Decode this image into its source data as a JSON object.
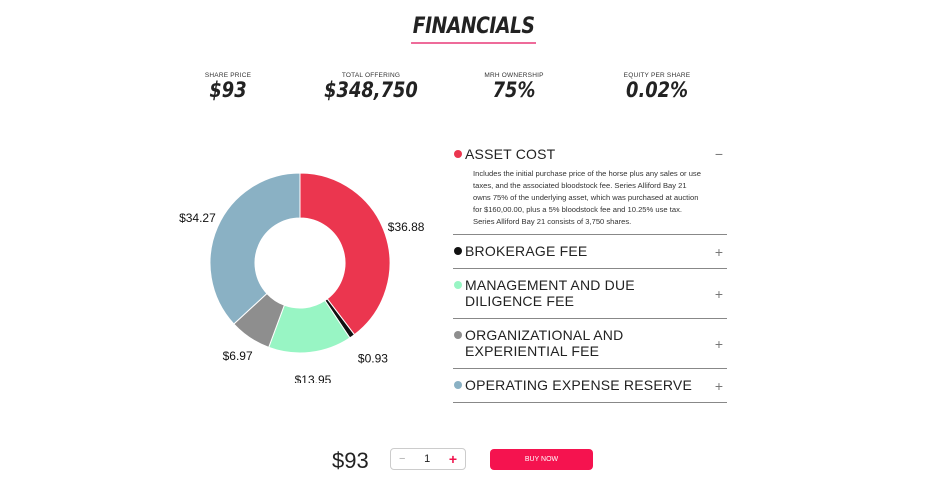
{
  "title": "FINANCIALS",
  "stats": [
    {
      "label": "SHARE PRICE",
      "value": "$93"
    },
    {
      "label": "TOTAL OFFERING",
      "value": "$348,750"
    },
    {
      "label": "MRH OWNERSHIP",
      "value": "75%"
    },
    {
      "label": "EQUITY PER SHARE",
      "value": "0.02%"
    }
  ],
  "chart_data": {
    "type": "pie",
    "categories": [
      "Asset Cost",
      "Brokerage Fee",
      "Management and Due Diligence Fee",
      "Organizational and Experiential Fee",
      "Operating Expense Reserve"
    ],
    "values": [
      36.88,
      0.93,
      13.95,
      6.97,
      34.27
    ],
    "labels": [
      "$36.88",
      "$0.93",
      "$13.95",
      "$6.97",
      "$34.27"
    ],
    "colors": [
      "#eb364f",
      "#111111",
      "#98f5c4",
      "#8e8e8e",
      "#8ab1c4"
    ]
  },
  "fees": [
    {
      "label": "ASSET COST",
      "toggle": "−",
      "color": "#eb364f",
      "description": "Includes the initial purchase price of the horse plus any sales or use taxes, and the associated bloodstock fee. Series Alliford Bay 21 owns 75% of the underlying asset, which was purchased at auction for $160,00.00, plus a 5% bloodstock fee and 10.25% use tax. Series Alliford Bay 21 consists of 3,750 shares."
    },
    {
      "label": "BROKERAGE FEE",
      "toggle": "+",
      "color": "#111111"
    },
    {
      "label": "MANAGEMENT AND DUE DILIGENCE FEE",
      "toggle": "+",
      "color": "#98f5c4"
    },
    {
      "label": "ORGANIZATIONAL AND EXPERIENTIAL FEE",
      "toggle": "+",
      "color": "#8e8e8e"
    },
    {
      "label": "OPERATING EXPENSE RESERVE",
      "toggle": "+",
      "color": "#8ab1c4"
    }
  ],
  "purchase": {
    "price": "$93",
    "quantity": "1",
    "minus": "−",
    "plus": "+",
    "buy_label": "BUY NOW"
  }
}
